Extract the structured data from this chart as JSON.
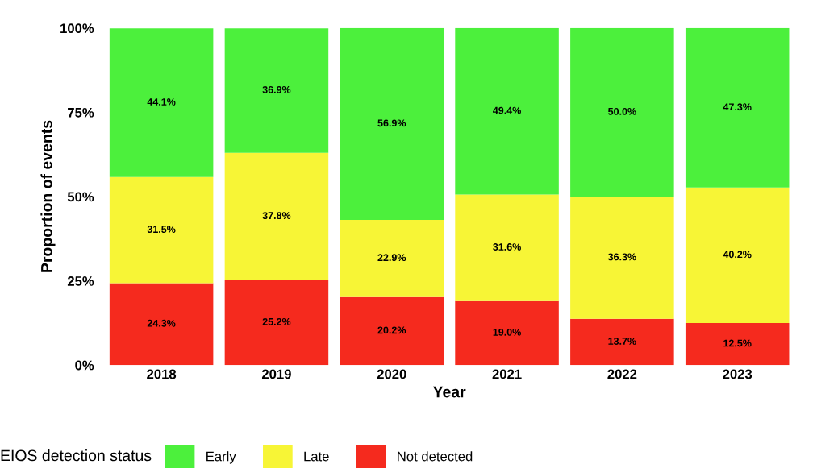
{
  "chart_data": {
    "type": "bar",
    "stacked": true,
    "xlabel": "Year",
    "ylabel": "Proportion of events",
    "legend_title": "EIOS detection status",
    "legend": "bottom",
    "grid": false,
    "categories": [
      "2018",
      "2019",
      "2020",
      "2021",
      "2022",
      "2023"
    ],
    "ylim": [
      0,
      100
    ],
    "yticks": [
      {
        "value": 0,
        "label": "0%"
      },
      {
        "value": 25,
        "label": "25%"
      },
      {
        "value": 50,
        "label": "50%"
      },
      {
        "value": 75,
        "label": "75%"
      },
      {
        "value": 100,
        "label": "100%"
      }
    ],
    "series": [
      {
        "name": "Not detected",
        "color": "#f52a1e",
        "values": [
          24.3,
          25.2,
          20.2,
          19.0,
          13.7,
          12.5
        ],
        "value_labels": [
          "24.3%",
          "25.2%",
          "20.2%",
          "19.0%",
          "13.7%",
          "12.5%"
        ]
      },
      {
        "name": "Late",
        "color": "#f7f536",
        "values": [
          31.5,
          37.8,
          22.9,
          31.6,
          36.3,
          40.2
        ],
        "value_labels": [
          "31.5%",
          "37.8%",
          "22.9%",
          "31.6%",
          "36.3%",
          "40.2%"
        ]
      },
      {
        "name": "Early",
        "color": "#4cf03c",
        "values": [
          44.1,
          36.9,
          56.9,
          49.4,
          50.0,
          47.3
        ],
        "value_labels": [
          "44.1%",
          "36.9%",
          "56.9%",
          "49.4%",
          "50.0%",
          "47.3%"
        ]
      }
    ]
  }
}
